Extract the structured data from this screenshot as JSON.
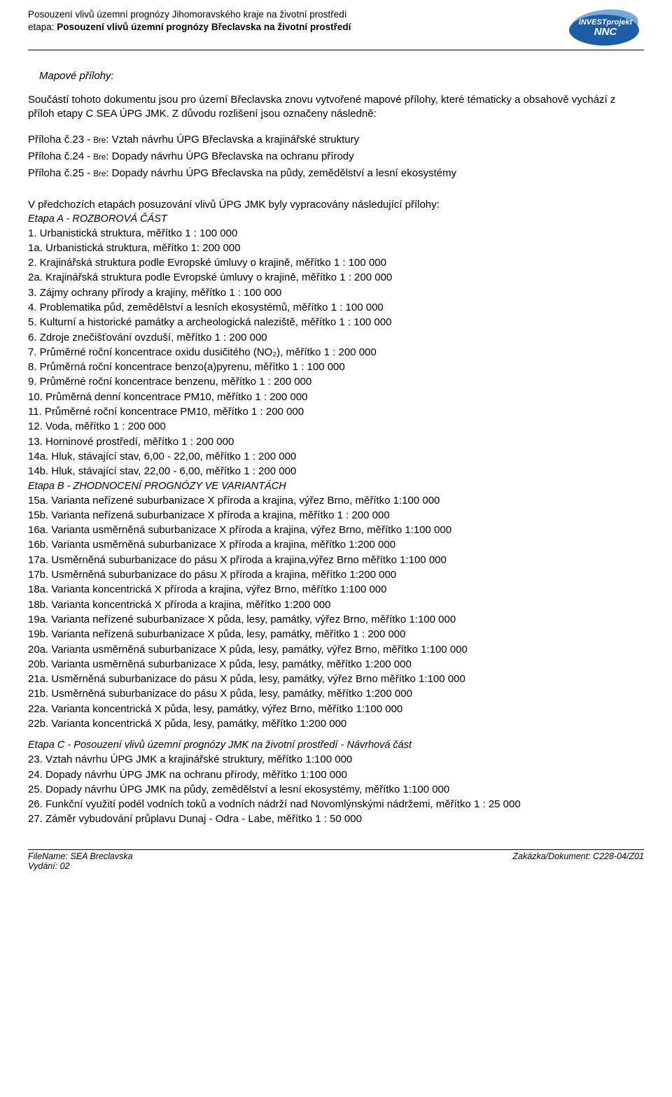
{
  "header": {
    "line1": "Posouzení vlivů územní prognózy Jihomoravského kraje na životní prostředí",
    "etapa_label": "etapa: ",
    "etapa_bold": "Posouzení vlivů územní prognózy Břeclavska na životní prostředí",
    "logo_line1": "INVESTprojekt",
    "logo_line2": "NNC"
  },
  "section_title": "Mapové přílohy:",
  "intro": "Součástí tohoto dokumentu jsou pro území Břeclavska znovu vytvořené mapové přílohy, které tématicky a obsahově vychází z příloh etapy C SEA ÚPG JMK. Z důvodu rozlišení jsou označeny následně:",
  "prilohy": [
    {
      "pre": "Příloha č.23 - ",
      "sm": "Bre",
      "post": ": Vztah návrhu ÚPG Břeclavska a krajinářské struktury"
    },
    {
      "pre": "Příloha č.24 - ",
      "sm": "Bre",
      "post": ": Dopady návrhu ÚPG Břeclavska na ochranu přírody"
    },
    {
      "pre": "Příloha č.25 - ",
      "sm": "Bre",
      "post": ": Dopady návrhu ÚPG Břeclavska na půdy, zemědělství a lesní ekosystémy"
    }
  ],
  "sub_intro": "V předchozích etapách posuzování vlivů ÚPG JMK byly vypracovány následující přílohy:",
  "etapa_a_title": "Etapa A - ROZBOROVÁ ČÁST",
  "etapa_a_items": [
    "1. Urbanistická struktura, měřítko 1 : 100 000",
    "1a. Urbanistická struktura, měřítko 1: 200 000",
    "2. Krajinářská struktura podle Evropské úmluvy o krajině, měřítko 1 : 100 000",
    "2a. Krajinářská struktura podle Evropské úmluvy o krajině, měřítko 1 : 200 000",
    "3. Zájmy ochrany přírody a krajiny, měřítko 1 : 100 000",
    "4. Problematika půd, zemědělství a lesních ekosystémů, měřítko 1 : 100 000",
    "5. Kulturní a historické památky a archeologická naleziště, měřítko 1 : 100 000",
    "6. Zdroje znečišťování ovzduší, měřítko 1 : 200 000",
    "7. Průměrné roční koncentrace oxidu dusičitého (NO₂), měřítko 1 : 200 000",
    "8. Průměrná roční koncentrace benzo(a)pyrenu, měřítko 1 : 100 000",
    "9. Průměrné roční koncentrace benzenu, měřítko 1 : 200 000",
    "10. Průměrná denní koncentrace PM10, měřítko 1 : 200 000",
    "11. Průměrné roční koncentrace PM10, měřítko 1 : 200 000",
    "12. Voda, měřítko 1 : 200 000",
    "13. Horninové prostředí, měřítko 1 : 200 000",
    "14a. Hluk, stávající stav, 6,00 - 22,00,  měřítko 1 : 200 000",
    "14b. Hluk, stávající stav, 22,00 - 6,00,  měřítko 1 : 200 000"
  ],
  "etapa_b_title": "Etapa B - ZHODNOCENÍ PROGNÓZY VE VARIANTÁCH",
  "etapa_b_items": [
    "15a. Varianta neřízené suburbanizace X příroda a krajina, výřez Brno, měřítko 1:100 000",
    "15b. Varianta neřízená suburbanizace X příroda a krajina, měřítko 1 : 200 000",
    "16a. Varianta usměrněná suburbanizace X příroda a krajina, výřez Brno, měřítko 1:100 000",
    "16b. Varianta usměrněná suburbanizace X  příroda a krajina,  měřítko 1:200 000",
    "17a. Usměrněná suburbanizace do pásu X příroda a krajina,výřez Brno měřítko 1:100 000",
    "17b. Usměrněná suburbanizace do pásu X příroda a krajina, měřítko 1:200 000",
    "18a. Varianta koncentrická X příroda a krajina, výřez Brno, měřítko 1:100 000",
    "18b. Varianta koncentrická X příroda a krajina, měřítko 1:200 000",
    "19a. Varianta neřízené suburbanizace X půda, lesy, památky, výřez Brno, měřítko 1:100 000",
    "19b. Varianta neřízená suburbanizace X půda, lesy, památky, měřítko 1 : 200 000",
    "20a. Varianta usměrněná suburbanizace X půda, lesy, památky, výřez Brno, měřítko 1:100 000",
    "20b. Varianta usměrněná suburbanizace X půda, lesy, památky,  měřítko 1:200 000",
    "21a. Usměrněná suburbanizace do pásu X půda, lesy, památky, výřez Brno měřítko 1:100 000",
    "21b. Usměrněná suburbanizace do pásu X půda, lesy, památky, měřítko 1:200 000",
    "22a. Varianta koncentrická X půda, lesy, památky, výřez Brno, měřítko 1:100 000",
    "22b. Varianta koncentrická X půda, lesy, památky, měřítko 1:200 000"
  ],
  "etapa_c_title": "Etapa C - Posouzení vlivů územní prognózy JMK na životní prostředí - Návrhová část",
  "etapa_c_items": [
    "23. Vztah návrhu ÚPG JMK a krajinářské struktury, měřítko 1:100 000",
    "24. Dopady návrhu ÚPG JMK na ochranu přírody, měřítko 1:100 000",
    "25. Dopady návrhu ÚPG JMK na půdy, zemědělství a lesní ekosystémy, měřítko 1:100 000",
    "26. Funkční využití podél vodních toků a vodních nádrží nad Novomlýnskými nádržemi,   měřítko 1 : 25 000",
    "27. Záměr vybudování průplavu Dunaj - Odra - Labe, měřítko 1 : 50 000"
  ],
  "footer": {
    "left": "FileName: SEA Breclavska",
    "right": "Zakázka/Dokument: C228-04/Z01",
    "cutoff": "Vydání: 02"
  },
  "colors": {
    "text": "#000000",
    "bg": "#ffffff",
    "logo_light": "#7aa8d8",
    "logo_dark": "#1d5fa6"
  }
}
